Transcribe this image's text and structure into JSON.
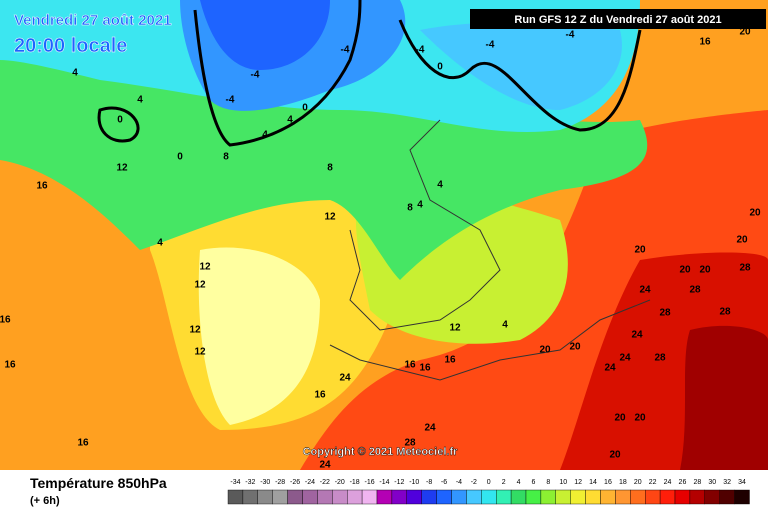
{
  "header": {
    "date": "Vendredi 27 août 2021",
    "time": "20:00 locale",
    "run": "Run GFS 12 Z du Vendredi 27 août 2021",
    "copyright": "Copyright © 2021 Meteociel.fr"
  },
  "footer": {
    "title": "Température 850hPa",
    "step": "(+ 6h)"
  },
  "legend": [
    {
      "value": -34,
      "color": "#5a5a5a"
    },
    {
      "value": -32,
      "color": "#707070"
    },
    {
      "value": -30,
      "color": "#8a8a8a"
    },
    {
      "value": -28,
      "color": "#a0a0a0"
    },
    {
      "value": -26,
      "color": "#8c5a8c"
    },
    {
      "value": -24,
      "color": "#a064a0"
    },
    {
      "value": -22,
      "color": "#b478b4"
    },
    {
      "value": -20,
      "color": "#c88cc8"
    },
    {
      "value": -18,
      "color": "#dca0dc"
    },
    {
      "value": -16,
      "color": "#f0b4f0"
    },
    {
      "value": -14,
      "color": "#b400b4"
    },
    {
      "value": -12,
      "color": "#8200c8"
    },
    {
      "value": -10,
      "color": "#5000dc"
    },
    {
      "value": -8,
      "color": "#1e3cf0"
    },
    {
      "value": -6,
      "color": "#1e64ff"
    },
    {
      "value": -4,
      "color": "#3296ff"
    },
    {
      "value": -2,
      "color": "#46c8ff"
    },
    {
      "value": 0,
      "color": "#32e6f0"
    },
    {
      "value": 2,
      "color": "#32f0b4"
    },
    {
      "value": 4,
      "color": "#32dc64"
    },
    {
      "value": 6,
      "color": "#46f046"
    },
    {
      "value": 8,
      "color": "#8cf032"
    },
    {
      "value": 10,
      "color": "#c8f032"
    },
    {
      "value": 12,
      "color": "#f0f032"
    },
    {
      "value": 14,
      "color": "#ffdc32"
    },
    {
      "value": 16,
      "color": "#ffb432"
    },
    {
      "value": 18,
      "color": "#ff9632"
    },
    {
      "value": 20,
      "color": "#ff6e1e"
    },
    {
      "value": 22,
      "color": "#ff4614"
    },
    {
      "value": 24,
      "color": "#ff1e0a"
    },
    {
      "value": 26,
      "color": "#e60000"
    },
    {
      "value": 28,
      "color": "#b40000"
    },
    {
      "value": 30,
      "color": "#820000"
    },
    {
      "value": 32,
      "color": "#500000"
    },
    {
      "value": 34,
      "color": "#1e0000"
    }
  ],
  "contour_labels": [
    -4,
    -4,
    -4,
    -4,
    -4,
    -4,
    0,
    0,
    0,
    0,
    4,
    4,
    4,
    4,
    4,
    4,
    4,
    4,
    8,
    8,
    8,
    12,
    12,
    12,
    12,
    12,
    12,
    12,
    16,
    16,
    16,
    16,
    16,
    16,
    16,
    16,
    16,
    20,
    20,
    20,
    20,
    20,
    20,
    20,
    20,
    20,
    24,
    24,
    24,
    24,
    24,
    24,
    24,
    28,
    28,
    28,
    28,
    28,
    28,
    20,
    20
  ]
}
